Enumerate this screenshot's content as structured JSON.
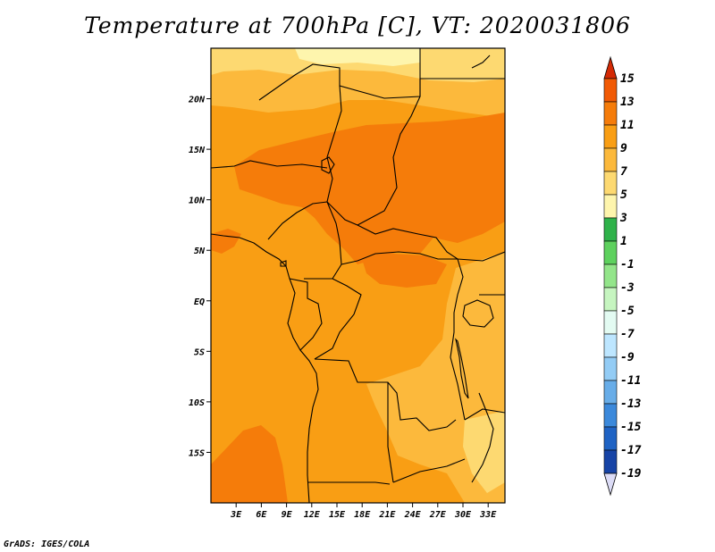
{
  "title": "Temperature at 700hPa [C], VT: 2020031806",
  "credit": "GrADS: IGES/COLA",
  "map": {
    "lon_range": [
      0,
      35
    ],
    "lat_range": [
      -20,
      25
    ],
    "x_ticks": [
      "3E",
      "6E",
      "9E",
      "12E",
      "15E",
      "18E",
      "21E",
      "24E",
      "27E",
      "30E",
      "33E"
    ],
    "x_tick_values": [
      3,
      6,
      9,
      12,
      15,
      18,
      21,
      24,
      27,
      30,
      33
    ],
    "y_ticks": [
      "20N",
      "15N",
      "10N",
      "5N",
      "EQ",
      "5S",
      "10S",
      "15S"
    ],
    "y_tick_values": [
      20,
      15,
      10,
      5,
      0,
      -5,
      -10,
      -15
    ]
  },
  "colorbar": {
    "labels": [
      "15",
      "13",
      "11",
      "9",
      "7",
      "5",
      "3",
      "1",
      "-1",
      "-3",
      "-5",
      "-7",
      "-9",
      "-11",
      "-13",
      "-15",
      "-17",
      "-19"
    ],
    "colors": [
      "#e63a05",
      "#f15a05",
      "#f57c0a",
      "#f99e14",
      "#fcb93c",
      "#fdd971",
      "#fef5ad",
      "#2fb24a",
      "#5ed15e",
      "#93e58a",
      "#c6f5c0",
      "#e3fbf2",
      "#bde6ff",
      "#93ccf5",
      "#68ade8",
      "#3b89db",
      "#1f63c4",
      "#1744a6",
      "#0e1f80",
      "#050a52"
    ],
    "top_arrow_color": "#d42a05",
    "bottom_arrow_color": "#dcdcf6"
  }
}
